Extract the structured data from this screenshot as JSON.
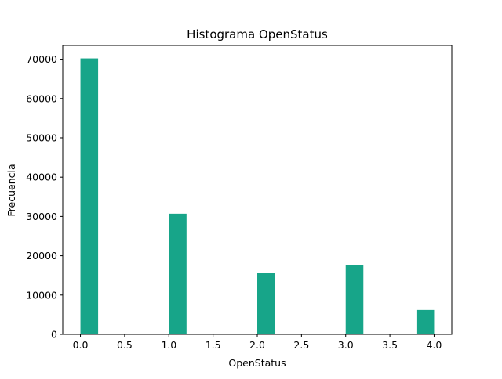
{
  "chart_data": {
    "type": "bar",
    "title": "Histograma OpenStatus",
    "xlabel": "OpenStatus",
    "ylabel": "Frecuencia",
    "xlim": [
      -0.2,
      4.2
    ],
    "ylim": [
      0,
      73500
    ],
    "xticks": [
      0.0,
      0.5,
      1.0,
      1.5,
      2.0,
      2.5,
      3.0,
      3.5,
      4.0
    ],
    "xtick_labels": [
      "0.0",
      "0.5",
      "1.0",
      "1.5",
      "2.0",
      "2.5",
      "3.0",
      "3.5",
      "4.0"
    ],
    "yticks": [
      0,
      10000,
      20000,
      30000,
      40000,
      50000,
      60000,
      70000
    ],
    "ytick_labels": [
      "0",
      "10000",
      "20000",
      "30000",
      "40000",
      "50000",
      "60000",
      "70000"
    ],
    "bin_width": 0.2,
    "bins": [
      {
        "x_start": 0.0,
        "x_end": 0.2,
        "value": 70200
      },
      {
        "x_start": 1.0,
        "x_end": 1.2,
        "value": 30700
      },
      {
        "x_start": 2.0,
        "x_end": 2.2,
        "value": 15600
      },
      {
        "x_start": 3.0,
        "x_end": 3.2,
        "value": 17600
      },
      {
        "x_start": 3.8,
        "x_end": 4.0,
        "value": 6200
      }
    ],
    "bar_color": "#17a589",
    "grid": false,
    "legend": "none"
  }
}
